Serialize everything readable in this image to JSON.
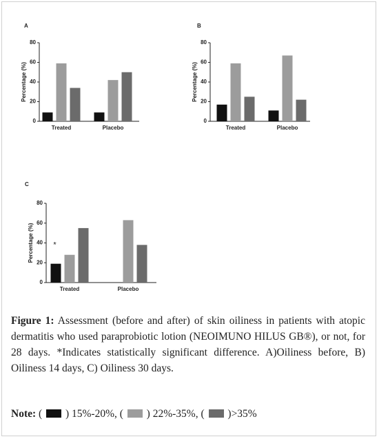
{
  "chart_data": [
    {
      "type": "bar",
      "title": "A",
      "y_label": "Percentage (%)",
      "categories": [
        "Treated",
        "Placebo"
      ],
      "ylim": [
        0,
        80
      ],
      "yticks": [
        0,
        20,
        40,
        60,
        80
      ],
      "series": [
        {
          "name": "15%-20%",
          "color": "#111111",
          "values": [
            9,
            9
          ]
        },
        {
          "name": "22%-35%",
          "color": "#9c9c9c",
          "values": [
            59,
            42
          ]
        },
        {
          "name": ">35%",
          "color": "#6b6b6b",
          "values": [
            34,
            50
          ]
        }
      ]
    },
    {
      "type": "bar",
      "title": "B",
      "y_label": "Percentage (%)",
      "categories": [
        "Treated",
        "Placebo"
      ],
      "ylim": [
        0,
        80
      ],
      "yticks": [
        0,
        20,
        40,
        60,
        80
      ],
      "series": [
        {
          "color": "#111111",
          "values": [
            17,
            11
          ]
        },
        {
          "color": "#9c9c9c",
          "values": [
            59,
            67
          ]
        },
        {
          "color": "#6b6b6b",
          "values": [
            25,
            22
          ]
        }
      ]
    },
    {
      "type": "bar",
      "title": "C",
      "y_label": "Percentage (%)",
      "categories": [
        "Treated",
        "Placebo"
      ],
      "ylim": [
        0,
        80
      ],
      "yticks": [
        0,
        20,
        40,
        60,
        80
      ],
      "annotation": "*",
      "series": [
        {
          "color": "#111111",
          "values": [
            19,
            null
          ]
        },
        {
          "color": "#9c9c9c",
          "values": [
            28,
            63
          ]
        },
        {
          "color": "#6b6b6b",
          "values": [
            55,
            38
          ]
        }
      ]
    }
  ],
  "caption": {
    "label": "Figure 1:",
    "text": "Assessment (before and after) of skin oiliness in patients with atopic dermatitis who used paraprobiotic lotion (NEOIMUNO HILUS GB®), or not, for 28 days. *Indicates statistically significant difference. A)Oiliness before, B) Oiliness 14 days, C) Oiliness 30 days.",
    "note_label": "Note:"
  }
}
